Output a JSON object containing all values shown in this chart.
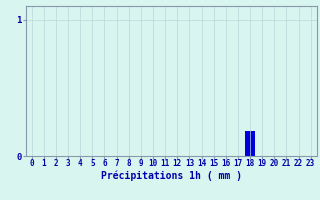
{
  "hours": [
    0,
    1,
    2,
    3,
    4,
    5,
    6,
    7,
    8,
    9,
    10,
    11,
    12,
    13,
    14,
    15,
    16,
    17,
    18,
    19,
    20,
    21,
    22,
    23
  ],
  "values": [
    0,
    0,
    0,
    0,
    0,
    0,
    0,
    0,
    0,
    0,
    0,
    0,
    0,
    0,
    0,
    0,
    0,
    0,
    0.18,
    0,
    0,
    0,
    0,
    0
  ],
  "bar_color": "#0000dd",
  "background_color": "#d8f5f0",
  "grid_color": "#b8d8d8",
  "axis_color": "#0000aa",
  "spine_color": "#8899aa",
  "xlabel": "Précipitations 1h ( mm )",
  "xlabel_fontsize": 7,
  "tick_fontsize": 5.5,
  "ytick_fontsize": 6.5,
  "yticks": [
    0,
    1
  ],
  "ylim": [
    0,
    1.1
  ],
  "xlim": [
    -0.5,
    23.5
  ],
  "figsize": [
    3.2,
    2.0
  ],
  "dpi": 100
}
